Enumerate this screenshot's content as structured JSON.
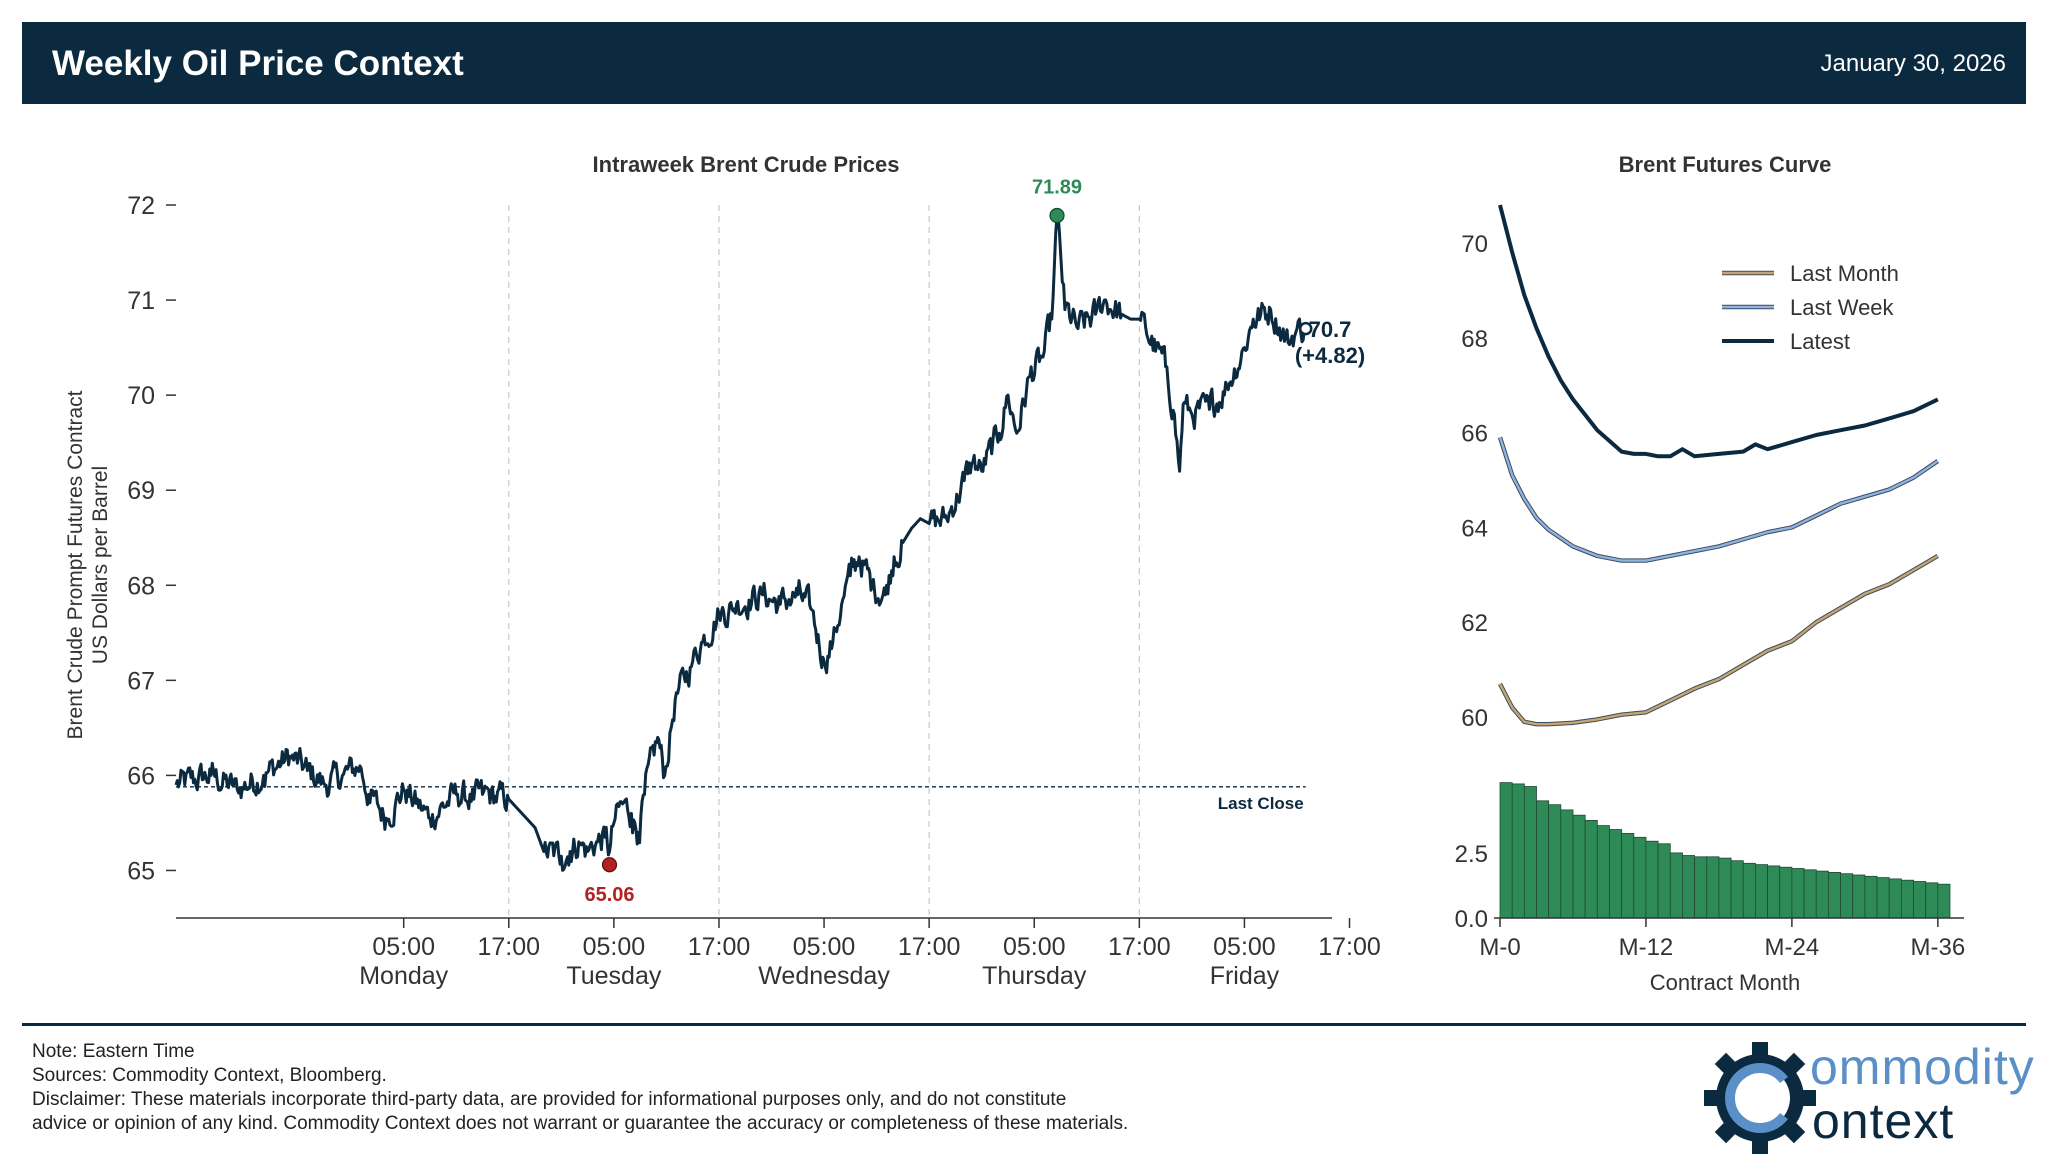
{
  "header": {
    "title": "Weekly Oil Price Context",
    "date": "January 30, 2026"
  },
  "colors": {
    "navy": "#0b2a3f",
    "green": "#2e8b57",
    "red": "#b22222",
    "tan": "#c8a570",
    "lightblue": "#8fb3e0"
  },
  "chart_data": [
    {
      "type": "line",
      "title": "Intraweek Brent Crude Prices",
      "ylabel_line1": "Brent Crude Prompt Futures Contract",
      "ylabel_line2": "US Dollars per Barrel",
      "ylim": [
        64.5,
        72.2
      ],
      "yticks": [
        "65",
        "66",
        "67",
        "68",
        "69",
        "70",
        "71",
        "72"
      ],
      "xlim": [
        -24,
        108
      ],
      "xticks": [
        {
          "h": 2,
          "time": "05:00",
          "day": "Monday"
        },
        {
          "h": 14,
          "time": "17:00",
          "day": ""
        },
        {
          "h": 26,
          "time": "05:00",
          "day": "Tuesday"
        },
        {
          "h": 38,
          "time": "17:00",
          "day": ""
        },
        {
          "h": 50,
          "time": "05:00",
          "day": "Wednesday"
        },
        {
          "h": 62,
          "time": "17:00",
          "day": ""
        },
        {
          "h": 74,
          "time": "05:00",
          "day": "Thursday"
        },
        {
          "h": 86,
          "time": "17:00",
          "day": ""
        },
        {
          "h": 98,
          "time": "05:00",
          "day": "Friday"
        },
        {
          "h": 110,
          "time": "17:00",
          "day": ""
        }
      ],
      "anchors_h": [
        -24,
        -20,
        -17,
        -14,
        -11,
        -9,
        -7,
        -5,
        -3,
        -2,
        0,
        2,
        5,
        8,
        10,
        11,
        14,
        17,
        18,
        20,
        21,
        22,
        23,
        24,
        25,
        25.5,
        26,
        27,
        28,
        28.8,
        29.5,
        31,
        31.8,
        33,
        35,
        36,
        38,
        39.5,
        40,
        43,
        45,
        46,
        47,
        48.5,
        50,
        51,
        52,
        53,
        54,
        55.5,
        57,
        58,
        59,
        60,
        61,
        62,
        64,
        66,
        67,
        68,
        70,
        71,
        72,
        73.5,
        75,
        76,
        76.6,
        77.5,
        79,
        81,
        82,
        84,
        85,
        86,
        89,
        90,
        90.6,
        91,
        92,
        94,
        96,
        98,
        99,
        101,
        103,
        104,
        105
      ],
      "anchors_v": [
        65.9,
        66.0,
        65.85,
        66.0,
        66.2,
        66.05,
        65.9,
        66.0,
        66.1,
        65.8,
        65.55,
        65.85,
        65.55,
        65.8,
        65.75,
        65.8,
        65.75,
        65.45,
        65.2,
        65.15,
        65.2,
        65.3,
        65.2,
        65.3,
        65.35,
        65.2,
        65.5,
        65.7,
        65.6,
        65.4,
        65.8,
        66.4,
        66.0,
        66.8,
        67.2,
        67.4,
        67.7,
        67.75,
        67.8,
        67.9,
        67.8,
        67.85,
        67.9,
        67.75,
        67.2,
        67.4,
        67.8,
        68.1,
        68.3,
        68.0,
        67.9,
        68.3,
        68.45,
        68.6,
        68.7,
        68.65,
        68.7,
        69.1,
        69.3,
        69.2,
        69.6,
        70.0,
        69.6,
        70.2,
        70.4,
        70.8,
        71.89,
        70.9,
        70.7,
        70.85,
        71.0,
        70.85,
        70.8,
        70.8,
        70.3,
        69.8,
        69.2,
        69.9,
        69.8,
        69.85,
        70.1,
        70.5,
        70.8,
        70.9,
        70.55,
        70.7,
        70.7
      ],
      "low": {
        "h": 25.5,
        "value": 65.06,
        "label": "65.06"
      },
      "high": {
        "h": 76.6,
        "value": 71.89,
        "label": "71.89"
      },
      "last_close": {
        "value": 65.88,
        "label": "Last Close"
      },
      "last": {
        "h": 105,
        "value": 70.7,
        "label": "70.7",
        "change": "(+4.82)"
      }
    },
    {
      "type": "line",
      "title": "Brent Futures Curve",
      "xlabel": "Contract Month",
      "ylim": [
        59.2,
        70.8
      ],
      "yticks": [
        "60",
        "62",
        "64",
        "66",
        "68",
        "70"
      ],
      "xticks": [
        {
          "m": 0,
          "label": "M-0"
        },
        {
          "m": 12,
          "label": "M-12"
        },
        {
          "m": 24,
          "label": "M-24"
        },
        {
          "m": 36,
          "label": "M-36"
        }
      ],
      "xlim": [
        0,
        37
      ],
      "series": [
        {
          "name": "Last Month",
          "color": "#c8a570",
          "x": [
            0,
            1,
            2,
            3,
            4,
            6,
            8,
            10,
            12,
            14,
            16,
            18,
            20,
            22,
            24,
            26,
            28,
            30,
            32,
            34,
            36
          ],
          "values": [
            60.7,
            60.2,
            59.9,
            59.85,
            59.85,
            59.88,
            59.95,
            60.05,
            60.1,
            60.35,
            60.6,
            60.8,
            61.1,
            61.4,
            61.6,
            62.0,
            62.3,
            62.6,
            62.8,
            63.1,
            63.4
          ]
        },
        {
          "name": "Last Week",
          "color": "#8fb3e0",
          "x": [
            0,
            1,
            2,
            3,
            4,
            6,
            8,
            10,
            12,
            14,
            16,
            18,
            20,
            22,
            24,
            26,
            28,
            30,
            32,
            34,
            36
          ],
          "values": [
            65.9,
            65.1,
            64.6,
            64.2,
            63.95,
            63.6,
            63.4,
            63.3,
            63.3,
            63.4,
            63.5,
            63.6,
            63.75,
            63.9,
            64.0,
            64.25,
            64.5,
            64.65,
            64.8,
            65.05,
            65.4
          ]
        },
        {
          "name": "Latest",
          "color": "#0b2a3f",
          "x": [
            0,
            1,
            2,
            3,
            4,
            5,
            6,
            8,
            10,
            11,
            12,
            13,
            14,
            15,
            16,
            18,
            20,
            21,
            22,
            24,
            26,
            28,
            30,
            32,
            34,
            36
          ],
          "values": [
            70.8,
            69.8,
            68.9,
            68.2,
            67.6,
            67.1,
            66.7,
            66.05,
            65.6,
            65.55,
            65.55,
            65.5,
            65.5,
            65.65,
            65.5,
            65.55,
            65.6,
            65.75,
            65.65,
            65.8,
            65.95,
            66.05,
            66.15,
            66.3,
            66.45,
            66.7
          ]
        }
      ]
    },
    {
      "type": "bar",
      "title": "",
      "ylim": [
        0,
        5.3
      ],
      "yticks": [
        "0.0",
        "2.5"
      ],
      "categories": [
        0,
        1,
        2,
        3,
        4,
        5,
        6,
        7,
        8,
        9,
        10,
        11,
        12,
        13,
        14,
        15,
        16,
        17,
        18,
        19,
        20,
        21,
        22,
        23,
        24,
        25,
        26,
        27,
        28,
        29,
        30,
        31,
        32,
        33,
        34,
        35,
        36
      ],
      "values": [
        5.2,
        5.15,
        5.05,
        4.5,
        4.35,
        4.15,
        3.95,
        3.75,
        3.55,
        3.4,
        3.25,
        3.1,
        2.95,
        2.85,
        2.5,
        2.4,
        2.35,
        2.35,
        2.3,
        2.2,
        2.1,
        2.05,
        2.0,
        1.95,
        1.9,
        1.85,
        1.8,
        1.75,
        1.7,
        1.65,
        1.6,
        1.55,
        1.5,
        1.45,
        1.4,
        1.35,
        1.3
      ]
    }
  ],
  "footer": {
    "note": "Note: Eastern Time",
    "sources": "Sources: Commodity Context, Bloomberg.",
    "disclaimer1": "Disclaimer: These materials incorporate third-party data, are provided for informational purposes only, and do not constitute",
    "disclaimer2": "advice or opinion of any kind. Commodity Context does not warrant or guarantee the accuracy or completeness of these materials."
  },
  "logo": {
    "word1": "ommodity",
    "word2": "ontext"
  }
}
